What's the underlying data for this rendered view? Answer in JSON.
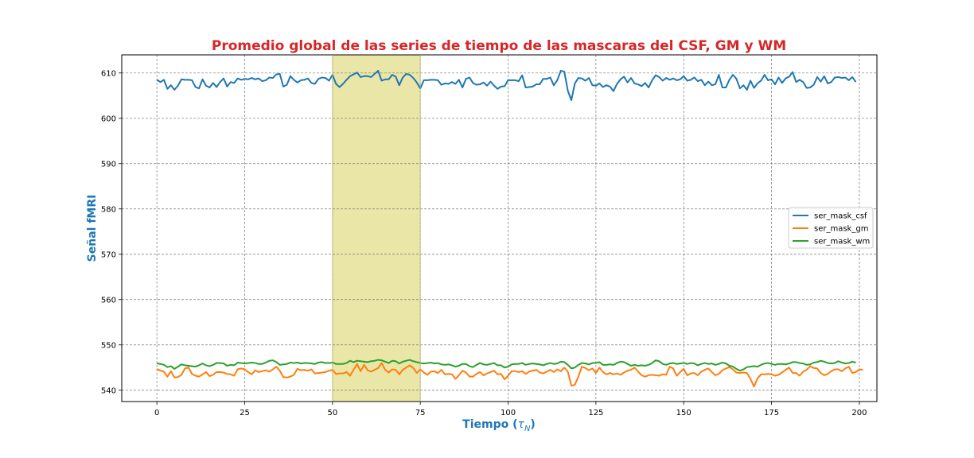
{
  "chart_data": {
    "type": "line",
    "title": "Promedio global de las series de tiempo de las mascaras del CSF, GM y WM",
    "xlabel_main": "Tiempo (",
    "xlabel_symbol": "τ",
    "xlabel_sub": "N",
    "xlabel_close": ")",
    "ylabel": "Señal fMRI",
    "xlim": [
      -10,
      205
    ],
    "ylim": [
      537.5,
      614
    ],
    "xticks": [
      0,
      25,
      50,
      75,
      100,
      125,
      150,
      175,
      200
    ],
    "yticks": [
      540,
      550,
      560,
      570,
      580,
      590,
      600,
      610
    ],
    "grid": true,
    "legend_position": "center-right",
    "highlight_span": {
      "x": [
        50,
        75
      ],
      "color": "#e9e6a8"
    },
    "series": [
      {
        "name": "ser_mask_csf",
        "color": "#1f77b4",
        "values": [
          608.5,
          608.0,
          608.5,
          606.5,
          607.3,
          606.3,
          607.2,
          608.6,
          608.5,
          608.5,
          608.4,
          606.9,
          606.6,
          608.6,
          607.2,
          606.8,
          607.8,
          606.9,
          608.0,
          608.8,
          607.0,
          608.0,
          607.8,
          608.8,
          608.5,
          608.7,
          608.6,
          608.9,
          608.6,
          608.8,
          608.2,
          608.4,
          609.0,
          608.9,
          609.7,
          609.8,
          607.0,
          607.4,
          609.3,
          608.5,
          607.9,
          608.4,
          608.5,
          608.8,
          607.8,
          607.6,
          608.7,
          609.0,
          608.9,
          608.3,
          609.6,
          607.6,
          606.9,
          607.6,
          608.5,
          609.3,
          609.7,
          610.1,
          609.1,
          609.3,
          609.3,
          609.1,
          609.8,
          610.5,
          608.3,
          608.6,
          608.6,
          609.6,
          609.2,
          607.3,
          609.0,
          609.8,
          609.6,
          608.9,
          607.9,
          606.6,
          608.4,
          608.4,
          608.5,
          608.5,
          608.4,
          607.4,
          607.7,
          607.6,
          608.0,
          607.6,
          608.5,
          606.8,
          608.7,
          609.0,
          607.8,
          607.4,
          607.5,
          607.9,
          607.2,
          608.1,
          607.2,
          606.5,
          607.0,
          607.1,
          608.4,
          608.4,
          608.4,
          608.2,
          609.5,
          606.8,
          606.9,
          607.0,
          607.5,
          607.5,
          608.7,
          608.7,
          609.0,
          607.3,
          608.4,
          610.5,
          610.3,
          606.1,
          604.0,
          607.7,
          608.9,
          608.8,
          608.3,
          608.9,
          607.3,
          607.2,
          607.7,
          606.9,
          607.3,
          607.0,
          606.0,
          607.6,
          608.6,
          609.2,
          607.9,
          608.9,
          607.7,
          607.5,
          607.1,
          607.8,
          606.8,
          608.4,
          609.5,
          609.1,
          608.3,
          608.9,
          608.5,
          608.8,
          608.4,
          608.6,
          609.3,
          608.3,
          608.5,
          609.0,
          608.2,
          608.5,
          607.3,
          608.1,
          607.3,
          607.5,
          609.6,
          606.8,
          606.8,
          608.5,
          609.6,
          608.7,
          606.6,
          607.3,
          606.3,
          608.3,
          606.7,
          607.7,
          608.3,
          609.6,
          608.4,
          608.6,
          607.5,
          609.0,
          607.8,
          608.8,
          609.2,
          610.2,
          608.0,
          608.5,
          608.0,
          606.7,
          606.8,
          607.4,
          609.1,
          608.1,
          609.3,
          607.7,
          608.0,
          609.0,
          609.1,
          608.9,
          609.0,
          608.4,
          609.1,
          608.0
        ]
      },
      {
        "name": "ser_mask_gm",
        "color": "#ff7f0e",
        "values": [
          544.7,
          544.3,
          544.1,
          543.0,
          544.2,
          542.8,
          542.9,
          543.4,
          544.8,
          545.0,
          543.6,
          543.2,
          543.0,
          543.5,
          544.0,
          543.1,
          543.4,
          544.0,
          544.0,
          543.9,
          543.6,
          543.5,
          543.2,
          544.6,
          544.8,
          544.6,
          544.0,
          543.5,
          544.4,
          544.0,
          544.2,
          544.4,
          544.1,
          544.6,
          545.2,
          544.3,
          542.9,
          542.8,
          543.0,
          543.4,
          544.7,
          544.4,
          544.5,
          544.3,
          544.6,
          543.7,
          543.8,
          543.9,
          544.0,
          544.3,
          544.5,
          543.6,
          543.7,
          543.7,
          544.0,
          543.2,
          544.5,
          545.8,
          544.2,
          545.6,
          544.4,
          544.1,
          544.5,
          544.9,
          546.0,
          544.5,
          543.9,
          544.6,
          544.5,
          543.5,
          544.5,
          545.0,
          545.5,
          544.9,
          543.8,
          544.6,
          543.9,
          543.4,
          544.1,
          544.2,
          543.8,
          544.5,
          543.5,
          543.6,
          543.5,
          542.5,
          543.3,
          544.3,
          543.9,
          543.0,
          543.0,
          543.6,
          544.0,
          543.3,
          543.7,
          544.0,
          544.3,
          543.5,
          543.6,
          542.4,
          543.2,
          544.2,
          544.2,
          544.0,
          544.2,
          543.6,
          544.1,
          544.3,
          544.5,
          543.9,
          543.7,
          544.1,
          544.5,
          544.0,
          544.6,
          544.2,
          545.0,
          544.1,
          541.0,
          541.2,
          543.0,
          545.2,
          544.9,
          544.4,
          544.8,
          543.8,
          545.0,
          544.0,
          543.5,
          543.8,
          543.5,
          543.7,
          543.4,
          543.9,
          544.3,
          544.5,
          545.0,
          544.1,
          543.3,
          543.0,
          543.3,
          543.4,
          543.3,
          543.2,
          543.5,
          543.4,
          545.2,
          544.8,
          543.2,
          544.0,
          544.7,
          543.3,
          543.7,
          543.8,
          543.3,
          544.1,
          544.5,
          544.8,
          544.0,
          543.3,
          543.6,
          544.4,
          544.8,
          545.1,
          544.6,
          543.9,
          543.8,
          543.9,
          543.8,
          542.5,
          540.8,
          542.6,
          543.5,
          543.5,
          543.6,
          543.5,
          543.2,
          543.4,
          543.9,
          544.5,
          545.0,
          543.8,
          543.8,
          543.2,
          544.1,
          544.5,
          545.3,
          544.9,
          544.8,
          543.8,
          543.3,
          543.6,
          544.2,
          544.6,
          544.6,
          544.2,
          544.8,
          545.2,
          543.8,
          544.0,
          544.6,
          544.5
        ]
      },
      {
        "name": "ser_mask_wm",
        "color": "#2ca02c",
        "values": [
          545.9,
          545.8,
          545.6,
          545.1,
          545.3,
          544.7,
          545.2,
          545.7,
          545.5,
          545.4,
          545.3,
          545.2,
          545.5,
          545.9,
          545.5,
          545.3,
          545.6,
          546.0,
          546.0,
          545.9,
          545.4,
          545.6,
          545.5,
          546.1,
          546.0,
          545.9,
          546.0,
          546.1,
          546.0,
          545.8,
          545.8,
          546.1,
          546.5,
          546.6,
          546.2,
          545.6,
          545.7,
          545.8,
          546.1,
          546.0,
          546.1,
          545.9,
          546.0,
          546.0,
          545.9,
          545.8,
          546.1,
          546.2,
          546.0,
          546.0,
          546.1,
          545.8,
          545.8,
          545.8,
          546.0,
          546.5,
          546.2,
          546.5,
          546.4,
          546.3,
          546.2,
          546.4,
          546.5,
          546.7,
          546.6,
          546.3,
          546.0,
          546.5,
          546.4,
          545.9,
          546.3,
          546.5,
          546.7,
          546.4,
          546.2,
          546.0,
          545.9,
          546.0,
          546.1,
          545.9,
          546.0,
          545.7,
          545.6,
          545.7,
          545.5,
          545.2,
          545.4,
          545.8,
          545.8,
          545.3,
          545.1,
          545.6,
          546.0,
          545.7,
          545.6,
          545.8,
          546.0,
          545.5,
          545.5,
          545.0,
          545.2,
          545.7,
          545.8,
          545.8,
          546.0,
          545.6,
          545.8,
          545.9,
          545.8,
          545.7,
          545.5,
          545.8,
          546.0,
          545.8,
          545.9,
          546.3,
          546.2,
          545.6,
          544.8,
          545.0,
          545.6,
          546.0,
          545.9,
          545.7,
          546.0,
          546.0,
          546.2,
          545.6,
          545.6,
          545.7,
          545.6,
          546.0,
          546.3,
          546.2,
          545.8,
          545.4,
          545.6,
          545.4,
          545.5,
          545.4,
          545.6,
          546.0,
          546.6,
          546.4,
          545.8,
          545.6,
          545.9,
          546.0,
          545.8,
          545.9,
          546.0,
          545.8,
          546.0,
          545.9,
          545.5,
          545.8,
          546.0,
          545.8,
          545.9,
          545.6,
          545.8,
          546.1,
          545.9,
          545.4,
          545.2,
          544.7,
          544.3,
          544.6,
          545.1,
          545.2,
          545.3,
          545.2,
          545.6,
          545.9,
          546.0,
          545.8,
          545.6,
          545.8,
          545.8,
          545.7,
          545.9,
          546.2,
          546.2,
          546.0,
          545.9,
          545.6,
          545.7,
          546.1,
          546.2,
          546.5,
          546.3,
          546.0,
          545.9,
          546.0,
          546.4,
          546.1,
          545.9,
          546.0,
          546.3,
          546.1
        ]
      }
    ]
  }
}
